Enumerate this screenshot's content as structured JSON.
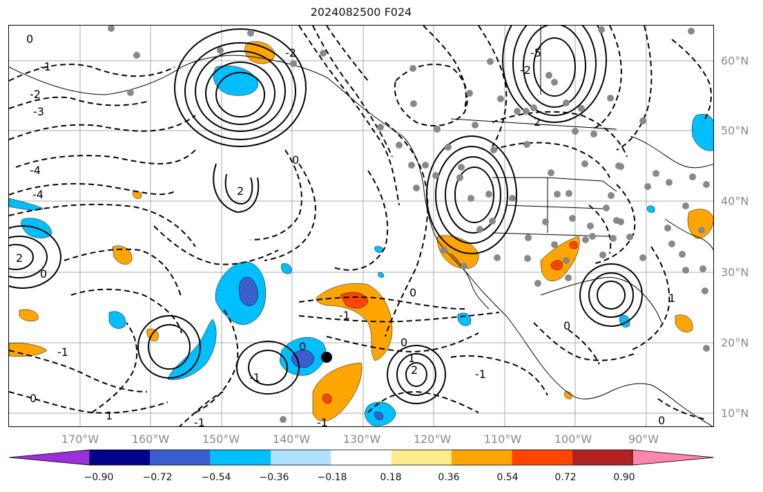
{
  "title": "2024082500 F024",
  "lon_labels": [
    "170°W",
    "160°W",
    "150°W",
    "140°W",
    "130°W",
    "120°W",
    "110°W",
    "100°W",
    "90°W"
  ],
  "lat_labels": [
    "60°N",
    "50°N",
    "40°N",
    "30°N",
    "20°N",
    "10°N"
  ],
  "contour_labels": {
    "c1": "0",
    "c2": "-1",
    "c3": "-2",
    "c4": "-3",
    "c5": "-4",
    "c6": "2",
    "c7": "0",
    "c8": "-4",
    "c9": "-3",
    "c10": "-5",
    "c11": "-2",
    "c12": "2",
    "c13": "0",
    "c14": "-2",
    "c15": "0",
    "c16": "-1",
    "c17": "2",
    "c18": "1",
    "c19": "-1",
    "c20": "0",
    "c21": "0",
    "c22": "-1",
    "c23": "1",
    "c24": "-1",
    "c25": "0",
    "c26": "0",
    "c27": "-1",
    "c28": "2",
    "c29": "1",
    "c30": "-1",
    "c31": "0"
  },
  "colorbar": {
    "colors": [
      "#9b30d9",
      "#00008b",
      "#3a5fcd",
      "#00bfff",
      "#b0e2ff",
      "#ffffff",
      "#ffec8b",
      "#ffa500",
      "#ff4500",
      "#b22222",
      "#ff88aa"
    ],
    "ticks": [
      "−0.90",
      "−0.72",
      "−0.54",
      "−0.36",
      "−0.18",
      "0.18",
      "0.36",
      "0.54",
      "0.72",
      "0.90"
    ]
  }
}
